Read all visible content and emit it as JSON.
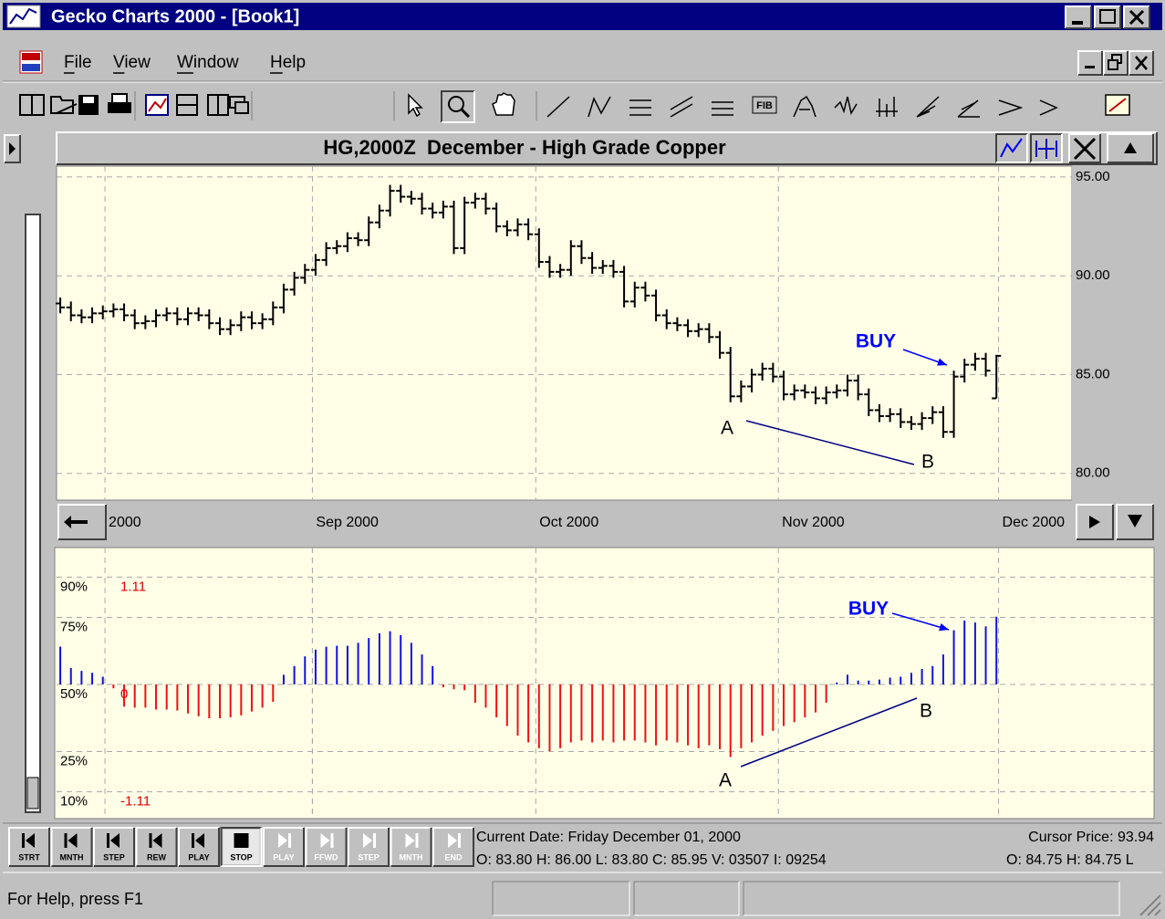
{
  "window": {
    "title": "Gecko Charts 2000 - [Book1]"
  },
  "menu": [
    "File",
    "View",
    "Window",
    "Help"
  ],
  "toolbar": {
    "fib": "FIB"
  },
  "chart_data": [
    {
      "type": "ohlc",
      "title": "HG,2000Z  December - High Grade Copper",
      "color": "#000000",
      "grid": true,
      "xlim": [
        -0.35,
        95.1
      ],
      "xticks": [
        {
          "value": 4.2,
          "label": "2000"
        },
        {
          "value": 23.7,
          "label": "Sep 2000"
        },
        {
          "value": 44.7,
          "label": "Oct 2000"
        },
        {
          "value": 67.5,
          "label": "Nov 2000"
        },
        {
          "value": 88.2,
          "label": "Dec 2000"
        }
      ],
      "ylim": [
        78.65,
        95.55
      ],
      "yticks": [
        {
          "value": 80,
          "label": "80.00"
        },
        {
          "value": 85,
          "label": "85.00"
        },
        {
          "value": 90,
          "label": "90.00"
        },
        {
          "value": 95,
          "label": "95.00"
        }
      ],
      "open": [
        88.6,
        88.4,
        88.0,
        87.9,
        88.1,
        88.2,
        88.3,
        88.0,
        87.6,
        87.7,
        88.0,
        88.1,
        87.8,
        88.1,
        88.0,
        87.6,
        87.3,
        87.5,
        87.9,
        87.6,
        87.8,
        88.4,
        89.3,
        89.9,
        90.3,
        90.8,
        91.4,
        91.5,
        91.9,
        91.8,
        92.7,
        93.3,
        94.3,
        94.0,
        93.9,
        93.4,
        93.2,
        93.5,
        91.4,
        93.7,
        93.9,
        93.4,
        92.5,
        92.3,
        92.6,
        92.1,
        90.7,
        90.2,
        90.3,
        91.5,
        90.9,
        90.4,
        90.5,
        90.2,
        88.7,
        89.4,
        89.0,
        88.0,
        87.6,
        87.5,
        87.2,
        87.3,
        86.9,
        86.1,
        83.9,
        84.4,
        85.0,
        85.3,
        84.9,
        84.0,
        84.2,
        84.1,
        83.8,
        84.1,
        84.2,
        84.7,
        84.0,
        83.2,
        82.9,
        83.0,
        82.6,
        82.5,
        82.8,
        83.1,
        82.1,
        84.9,
        85.5,
        85.8,
        83.8
      ],
      "high": [
        88.9,
        88.7,
        88.3,
        88.4,
        88.5,
        88.6,
        88.6,
        88.3,
        88.0,
        88.3,
        88.4,
        88.4,
        88.4,
        88.4,
        88.3,
        87.9,
        87.8,
        88.2,
        88.2,
        88.1,
        88.7,
        89.6,
        90.2,
        90.6,
        91.1,
        91.7,
        91.8,
        92.2,
        92.2,
        93.0,
        93.6,
        94.6,
        94.6,
        94.3,
        94.2,
        93.7,
        93.8,
        93.8,
        94.0,
        94.2,
        94.2,
        93.7,
        92.8,
        92.9,
        92.9,
        92.4,
        91.0,
        90.6,
        91.8,
        91.8,
        91.2,
        90.8,
        90.8,
        90.5,
        89.7,
        89.7,
        89.3,
        88.3,
        87.9,
        87.8,
        87.6,
        87.6,
        87.2,
        86.4,
        84.7,
        85.3,
        85.6,
        85.6,
        85.2,
        84.5,
        84.5,
        84.4,
        84.4,
        84.5,
        85.0,
        85.0,
        84.3,
        83.5,
        83.3,
        83.3,
        82.9,
        83.1,
        83.4,
        83.4,
        85.2,
        85.8,
        86.1,
        86.1,
        86.0
      ],
      "low": [
        88.1,
        87.7,
        87.6,
        87.6,
        87.8,
        87.9,
        87.7,
        87.3,
        87.3,
        87.4,
        87.7,
        87.5,
        87.5,
        87.7,
        87.3,
        87.0,
        87.0,
        87.2,
        87.3,
        87.3,
        87.5,
        88.1,
        89.0,
        89.6,
        90.0,
        90.5,
        91.1,
        91.2,
        91.5,
        91.5,
        92.4,
        93.0,
        93.7,
        93.6,
        93.1,
        92.9,
        92.9,
        91.1,
        91.1,
        93.4,
        93.1,
        92.2,
        92.0,
        92.0,
        91.8,
        90.4,
        89.9,
        89.9,
        90.0,
        90.6,
        90.1,
        90.1,
        89.9,
        88.4,
        88.4,
        88.7,
        87.7,
        87.3,
        87.2,
        86.9,
        86.9,
        86.6,
        85.8,
        83.6,
        83.6,
        84.1,
        84.7,
        84.6,
        83.7,
        83.7,
        83.8,
        83.5,
        83.5,
        83.8,
        83.9,
        83.7,
        82.9,
        82.6,
        82.6,
        82.3,
        82.2,
        82.2,
        82.5,
        81.8,
        81.8,
        84.6,
        85.2,
        84.9,
        83.8
      ],
      "close": [
        88.4,
        88.0,
        87.9,
        88.1,
        88.2,
        88.3,
        88.0,
        87.6,
        87.7,
        88.0,
        88.1,
        87.8,
        88.1,
        88.0,
        87.6,
        87.3,
        87.5,
        87.9,
        87.6,
        87.8,
        88.4,
        89.3,
        89.9,
        90.3,
        90.8,
        91.4,
        91.5,
        91.9,
        91.8,
        92.7,
        93.3,
        94.3,
        94.0,
        93.9,
        93.4,
        93.2,
        93.5,
        91.4,
        93.7,
        93.9,
        93.4,
        92.5,
        92.3,
        92.6,
        92.1,
        90.7,
        90.2,
        90.3,
        91.5,
        90.9,
        90.4,
        90.5,
        90.2,
        88.7,
        89.4,
        89.0,
        88.0,
        87.6,
        87.5,
        87.2,
        87.3,
        86.9,
        86.1,
        83.9,
        84.4,
        85.0,
        85.3,
        84.9,
        84.0,
        84.2,
        84.1,
        83.8,
        84.1,
        84.2,
        84.7,
        84.0,
        83.2,
        82.9,
        83.0,
        82.6,
        82.5,
        82.8,
        83.1,
        82.1,
        84.9,
        85.5,
        85.8,
        85.2,
        85.95
      ],
      "annotations": [
        "BUY",
        "A",
        "B"
      ]
    },
    {
      "type": "oscillator",
      "grid": true,
      "xlim": [
        -0.35,
        95.1
      ],
      "xticks": [
        {
          "value": 23.7,
          "label": ""
        }
      ],
      "ylim": [
        0,
        101
      ],
      "yticks": [
        {
          "value": 10,
          "label": "10%"
        },
        {
          "value": 25,
          "label": "25%"
        },
        {
          "value": 50,
          "label": "50%"
        },
        {
          "value": 75,
          "label": "75%"
        },
        {
          "value": 90,
          "label": "90%"
        }
      ],
      "y2lim": [
        -1.3875,
        1.415
      ],
      "y2ticks": [
        -1.11,
        0,
        1.11
      ],
      "positive_color": "#1010e0",
      "negative_color": "#f01010",
      "series": [
        {
          "axis": "y2",
          "values": [
            0.39,
            0.17,
            0.14,
            0.12,
            0.08,
            -0.04,
            -0.23,
            -0.24,
            -0.24,
            -0.26,
            -0.26,
            -0.27,
            -0.3,
            -0.33,
            -0.35,
            -0.35,
            -0.34,
            -0.32,
            -0.28,
            -0.24,
            -0.18,
            0.1,
            0.19,
            0.29,
            0.36,
            0.39,
            0.4,
            0.4,
            0.43,
            0.48,
            0.53,
            0.55,
            0.51,
            0.43,
            0.31,
            0.19,
            -0.03,
            -0.05,
            -0.06,
            -0.19,
            -0.24,
            -0.34,
            -0.43,
            -0.53,
            -0.6,
            -0.66,
            -0.69,
            -0.66,
            -0.6,
            -0.58,
            -0.6,
            -0.58,
            -0.6,
            -0.58,
            -0.58,
            -0.6,
            -0.63,
            -0.58,
            -0.6,
            -0.63,
            -0.66,
            -0.63,
            -0.67,
            -0.75,
            -0.66,
            -0.6,
            -0.53,
            -0.48,
            -0.43,
            -0.39,
            -0.34,
            -0.29,
            -0.19,
            0.02,
            0.1,
            0.04,
            0.04,
            0.05,
            0.07,
            0.08,
            0.12,
            0.16,
            0.19,
            0.31,
            0.56,
            0.66,
            0.64,
            0.6,
            0.7
          ]
        }
      ],
      "annotations": [
        "BUY",
        "A",
        "B"
      ]
    }
  ],
  "playback": {
    "buttons": [
      "STRT",
      "MNTH",
      "STEP",
      "REW",
      "PLAY",
      "STOP",
      "PLAY",
      "FFWD",
      "STEP",
      "MNTH",
      "END"
    ]
  },
  "info": {
    "current_date": "Current Date: Friday December 01, 2000",
    "ohlc": "O: 83.80 H: 86.00 L: 83.80 C: 85.95 V: 03507 I: 09254",
    "cursor_price": "Cursor Price: 93.94",
    "cursor_ohlc": "O: 84.75 H: 84.75 L"
  },
  "status": "For Help, press F1"
}
